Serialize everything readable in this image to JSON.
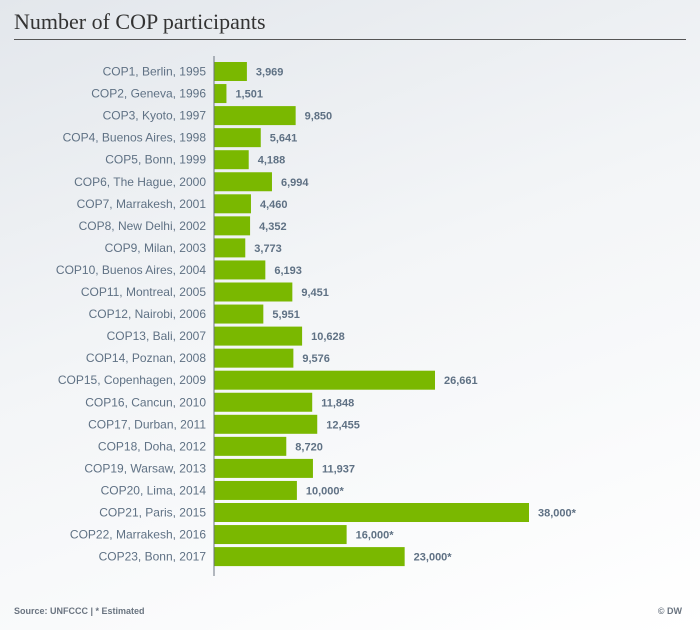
{
  "title": "Number of COP participants",
  "source": "Source: UNFCCC | * Estimated",
  "credit": "© DW",
  "colors": {
    "bar": "#7ab800",
    "axis": "#6a7480"
  },
  "chart_data": {
    "type": "bar",
    "orientation": "horizontal",
    "categories": [
      "COP1, Berlin, 1995",
      "COP2, Geneva, 1996",
      "COP3, Kyoto, 1997",
      "COP4, Buenos Aires, 1998",
      "COP5, Bonn, 1999",
      "COP6, The Hague, 2000",
      "COP7, Marrakesh, 2001",
      "COP8, New Delhi, 2002",
      "COP9, Milan, 2003",
      "COP10, Buenos Aires, 2004",
      "COP11, Montreal, 2005",
      "COP12, Nairobi, 2006",
      "COP13, Bali, 2007",
      "COP14, Poznan, 2008",
      "COP15, Copenhagen, 2009",
      "COP16, Cancun, 2010",
      "COP17, Durban, 2011",
      "COP18, Doha, 2012",
      "COP19, Warsaw, 2013",
      "COP20, Lima, 2014",
      "COP21, Paris, 2015",
      "COP22, Marrakesh, 2016",
      "COP23, Bonn, 2017"
    ],
    "values": [
      3969,
      1501,
      9850,
      5641,
      4188,
      6994,
      4460,
      4352,
      3773,
      6193,
      9451,
      5951,
      10628,
      9576,
      26661,
      11848,
      12455,
      8720,
      11937,
      10000,
      38000,
      16000,
      23000
    ],
    "value_labels": [
      "3,969",
      "1,501",
      "9,850",
      "5,641",
      "4,188",
      "6,994",
      "4,460",
      "4,352",
      "3,773",
      "6,193",
      "9,451",
      "5,951",
      "10,628",
      "9,576",
      "26,661",
      "11,848",
      "12,455",
      "8,720",
      "11,937",
      "10,000*",
      "38,000*",
      "16,000*",
      "23,000*"
    ],
    "xlim": [
      0,
      38000
    ],
    "grid": false
  }
}
